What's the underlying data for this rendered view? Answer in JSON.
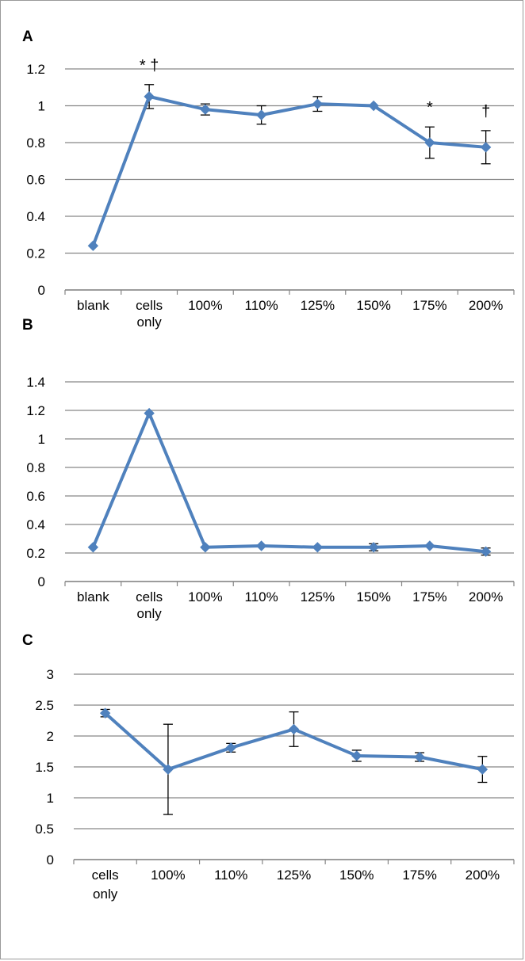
{
  "chart_data": [
    {
      "type": "line",
      "panel": "A",
      "categories": [
        "blank",
        "cells only",
        "100%",
        "110%",
        "125%",
        "150%",
        "175%",
        "200%"
      ],
      "series": [
        {
          "values": [
            0.24,
            1.05,
            0.98,
            0.95,
            1.01,
            1.0,
            0.8,
            0.775
          ],
          "errors": [
            0.0,
            0.065,
            0.03,
            0.05,
            0.04,
            0.0,
            0.085,
            0.09
          ]
        }
      ],
      "ylim": [
        0,
        1.2
      ],
      "yticks": [
        "0",
        "0.2",
        "0.4",
        "0.6",
        "0.8",
        "1",
        "1.2"
      ],
      "annotations": [
        {
          "category": "cells only",
          "text": "* †"
        },
        {
          "category": "175%",
          "text": "*"
        },
        {
          "category": "200%",
          "text": "†"
        }
      ],
      "grid": true,
      "color": "#4f81bd"
    },
    {
      "type": "line",
      "panel": "B",
      "categories": [
        "blank",
        "cells only",
        "100%",
        "110%",
        "125%",
        "150%",
        "175%",
        "200%"
      ],
      "series": [
        {
          "values": [
            0.24,
            1.18,
            0.24,
            0.25,
            0.24,
            0.24,
            0.25,
            0.21
          ],
          "errors": [
            0.0,
            0.0,
            0.0,
            0.0,
            0.0,
            0.025,
            0.0,
            0.025
          ]
        }
      ],
      "ylim": [
        0,
        1.4
      ],
      "yticks": [
        "0",
        "0.2",
        "0.4",
        "0.6",
        "0.8",
        "1",
        "1.2",
        "1.4"
      ],
      "grid": true,
      "color": "#4f81bd"
    },
    {
      "type": "line",
      "panel": "C",
      "categories": [
        "cells only",
        "100%",
        "110%",
        "125%",
        "150%",
        "175%",
        "200%"
      ],
      "series": [
        {
          "values": [
            2.37,
            1.46,
            1.81,
            2.11,
            1.68,
            1.66,
            1.46
          ],
          "errors": [
            0.06,
            0.73,
            0.07,
            0.28,
            0.09,
            0.07,
            0.21
          ]
        }
      ],
      "ylim": [
        0,
        3
      ],
      "yticks": [
        "0",
        "0.5",
        "1",
        "1.5",
        "2",
        "2.5",
        "3"
      ],
      "grid": true,
      "color": "#4f81bd"
    }
  ]
}
